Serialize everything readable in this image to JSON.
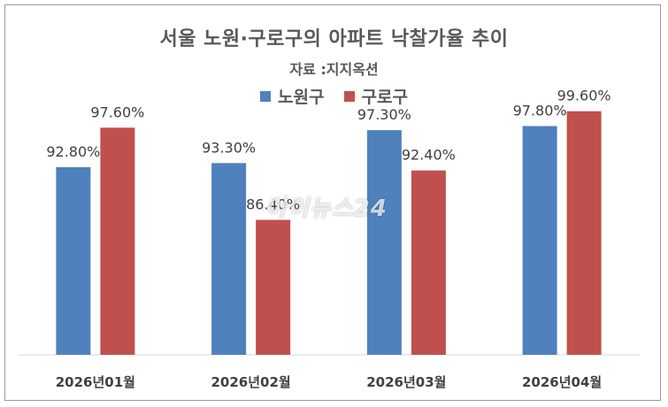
{
  "chart_data": {
    "type": "bar",
    "title": "서울 노원·구로구의 아파트 낙찰가율 추이",
    "subtitle": "자료 :지지옥션",
    "categories": [
      "2026년01월",
      "2026년02월",
      "2026년03월",
      "2026년04월"
    ],
    "series": [
      {
        "name": "노원구",
        "color": "#4f81bd",
        "values": [
          92.8,
          93.3,
          97.3,
          97.8
        ],
        "labels": [
          "92.80%",
          "93.30%",
          "97.30%",
          "97.80%"
        ]
      },
      {
        "name": "구로구",
        "color": "#c0504d",
        "values": [
          97.6,
          86.4,
          92.4,
          99.6
        ],
        "labels": [
          "97.60%",
          "86.40%",
          "92.40%",
          "99.60%"
        ]
      }
    ],
    "ylim": [
      70,
      100
    ],
    "grid": false,
    "legend": "top"
  },
  "watermark": "아이뉴스24"
}
